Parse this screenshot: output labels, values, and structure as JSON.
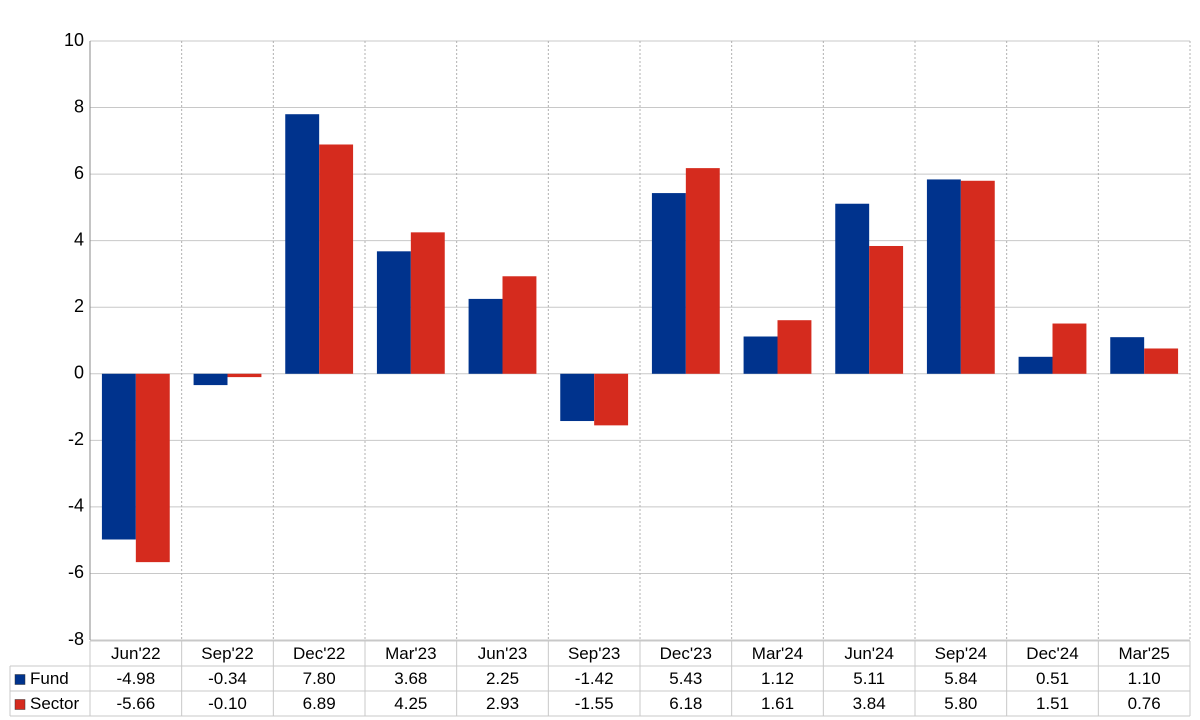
{
  "chart_data": {
    "type": "bar",
    "categories": [
      "Jun'22",
      "Sep'22",
      "Dec'22",
      "Mar'23",
      "Jun'23",
      "Sep'23",
      "Dec'23",
      "Mar'24",
      "Jun'24",
      "Sep'24",
      "Dec'24",
      "Mar'25"
    ],
    "series": [
      {
        "name": "Fund",
        "color": "#00338d",
        "values": [
          -4.98,
          -0.34,
          7.8,
          3.68,
          2.25,
          -1.42,
          5.43,
          1.12,
          5.11,
          5.84,
          0.51,
          1.1
        ],
        "value_labels": [
          "-4.98",
          "-0.34",
          "7.80",
          "3.68",
          "2.25",
          "-1.42",
          "5.43",
          "1.12",
          "5.11",
          "5.84",
          "0.51",
          "1.10"
        ]
      },
      {
        "name": "Sector",
        "color": "#d52b1e",
        "values": [
          -5.66,
          -0.1,
          6.89,
          4.25,
          2.93,
          -1.55,
          6.18,
          1.61,
          3.84,
          5.8,
          1.51,
          0.76
        ],
        "value_labels": [
          "-5.66",
          "-0.10",
          "6.89",
          "4.25",
          "2.93",
          "-1.55",
          "6.18",
          "1.61",
          "3.84",
          "5.80",
          "1.51",
          "0.76"
        ]
      }
    ],
    "ylim": [
      -8,
      10
    ],
    "yticks": [
      -8,
      -6,
      -4,
      -2,
      0,
      2,
      4,
      6,
      8,
      10
    ],
    "grid": true,
    "negative_label_color": "#e00000"
  }
}
